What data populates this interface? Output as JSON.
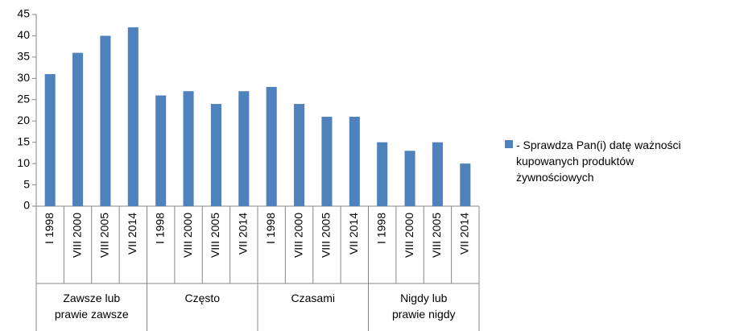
{
  "chart_data": {
    "type": "bar",
    "categories": [
      "I 1998",
      "VIII 2000",
      "VIII 2005",
      "VII 2014",
      "I 1998",
      "VIII 2000",
      "VIII 2005",
      "VII 2014",
      "I 1998",
      "VIII 2000",
      "VIII 2005",
      "VII 2014",
      "I 1998",
      "VIII 2000",
      "VIII 2005",
      "VII 2014"
    ],
    "category_groups": [
      "Zawsze lub\nprawie zawsze",
      "Często",
      "Czasami",
      "Nigdy lub\nprawie nigdy"
    ],
    "series": [
      {
        "name": "- Sprawdza Pan(i) datę ważności\nkupowanych produktów\nżywnościowych",
        "color": "#4f81bd",
        "values": [
          31,
          36,
          40,
          42,
          26,
          27,
          24,
          27,
          28,
          24,
          21,
          21,
          15,
          13,
          15,
          10
        ]
      }
    ],
    "ylim": [
      0,
      45
    ],
    "yticks": [
      0,
      5,
      10,
      15,
      20,
      25,
      30,
      35,
      40,
      45
    ],
    "grid": false,
    "legend": "right"
  }
}
